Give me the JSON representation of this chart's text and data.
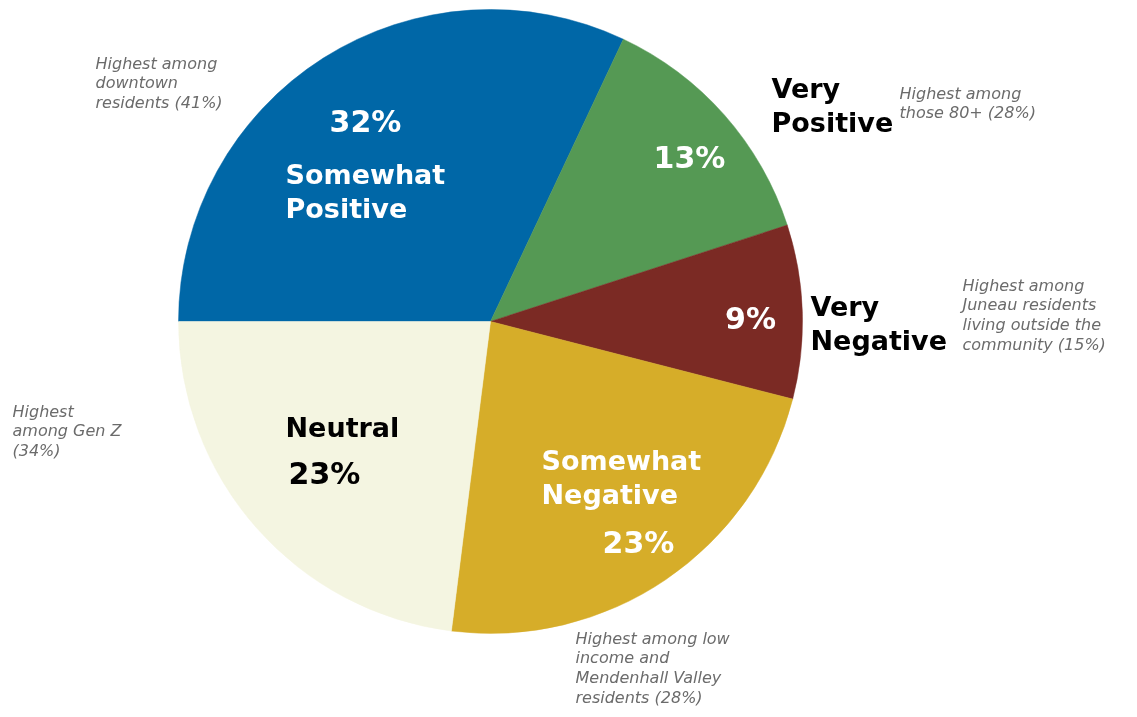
{
  "chart_data": {
    "type": "pie",
    "categories": [
      "Somewhat Positive",
      "Very Positive",
      "Very Negative",
      "Somewhat Negative",
      "Neutral"
    ],
    "values": [
      32,
      13,
      9,
      23,
      23
    ],
    "colors": [
      "#0067a7",
      "#559954",
      "#7b2a24",
      "#d6ad29",
      "#f4f5e1"
    ],
    "value_labels": [
      "32%",
      "13%",
      "9%",
      "23%",
      "23%"
    ],
    "annotations": [
      "Highest among downtown residents (41%)",
      "Highest among those 80+ (28%)",
      "Highest among Juneau residents living outside the community (15%)",
      "Highest among low income and Mendenhall Valley residents (28%)",
      "Highest among Gen Z (34%)"
    ]
  }
}
